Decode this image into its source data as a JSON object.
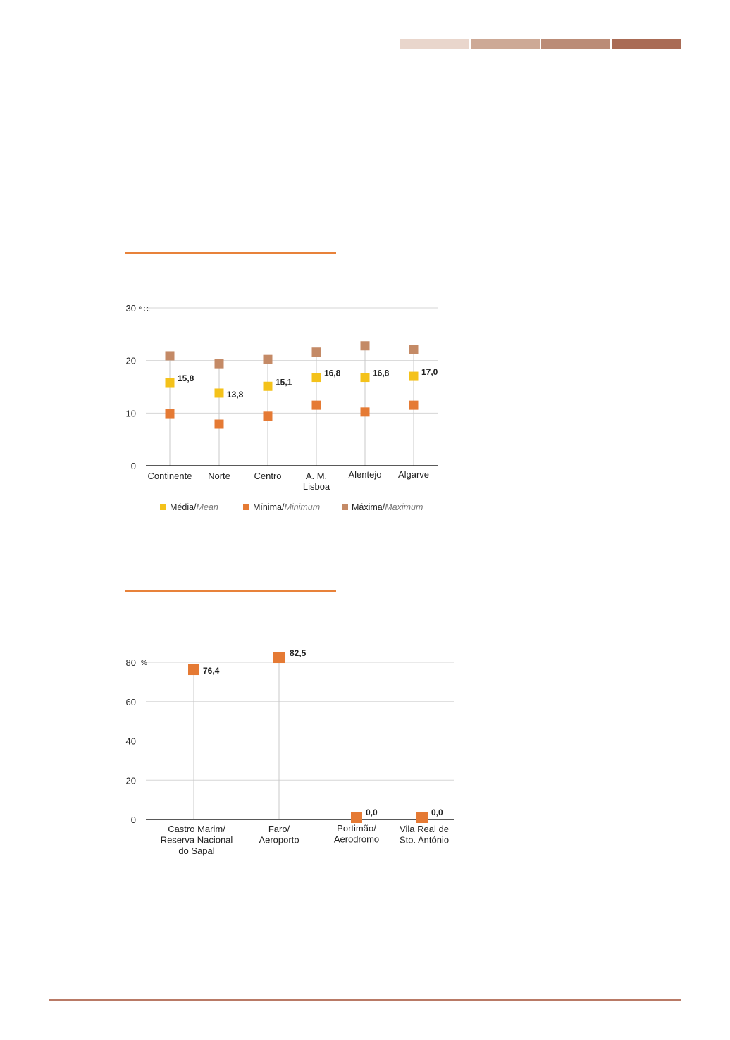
{
  "header": {
    "bar_colors": [
      "#e9d6cc",
      "#cda996",
      "#bb8c77",
      "#a96b55"
    ]
  },
  "colors": {
    "mean": "#f4c21a",
    "min": "#e57a34",
    "max": "#c48a66",
    "accent_rule": "#e8823a"
  },
  "chart_data": [
    {
      "type": "scatter",
      "unit": "º C.",
      "ylim": [
        0,
        30
      ],
      "yticks": [
        0,
        10,
        20,
        30
      ],
      "grid": true,
      "legend_placement": "bottom",
      "categories": [
        "Continente",
        "Norte",
        "Centro",
        "A. M. Lisboa",
        "Alentejo",
        "Algarve"
      ],
      "category_lines": [
        [
          "Continente"
        ],
        [
          "Norte"
        ],
        [
          "Centro"
        ],
        [
          "A. M.",
          "Lisboa"
        ],
        [
          "Alentejo"
        ],
        [
          "Algarve"
        ]
      ],
      "series": [
        {
          "key": "mean",
          "name": "Média/",
          "name_en": "Mean",
          "values": [
            15.8,
            13.8,
            15.1,
            16.8,
            16.8,
            17.0
          ],
          "labels": [
            "15,8",
            "13,8",
            "15,1",
            "16,8",
            "16,8",
            "17,0"
          ]
        },
        {
          "key": "min",
          "name": "Mínima/",
          "name_en": "Minimum",
          "values": [
            9.9,
            7.9,
            9.4,
            11.5,
            10.2,
            11.5
          ]
        },
        {
          "key": "max",
          "name": "Máxima/",
          "name_en": "Maximum",
          "values": [
            20.9,
            19.4,
            20.2,
            21.6,
            22.8,
            22.1
          ]
        }
      ]
    },
    {
      "type": "scatter",
      "unit": "%",
      "ylim": [
        0,
        80
      ],
      "yticks": [
        0,
        20,
        40,
        60,
        80
      ],
      "grid": true,
      "categories": [
        "Castro Marim/ Reserva Nacional do Sapal",
        "Faro/ Aeroporto",
        "Portimão/ Aerodromo",
        "Vila Real de Sto. António"
      ],
      "category_lines": [
        [
          "Castro Marim/",
          "Reserva Nacional",
          "do Sapal"
        ],
        [
          "Faro/",
          "Aeroporto"
        ],
        [
          "Portimão/",
          "Aerodromo"
        ],
        [
          "Vila Real de",
          "Sto. António"
        ]
      ],
      "series": [
        {
          "key": "value",
          "values": [
            76.4,
            82.5,
            0.0,
            0.0
          ],
          "labels": [
            "76,4",
            "82,5",
            "0,0",
            "0,0"
          ]
        }
      ]
    }
  ]
}
